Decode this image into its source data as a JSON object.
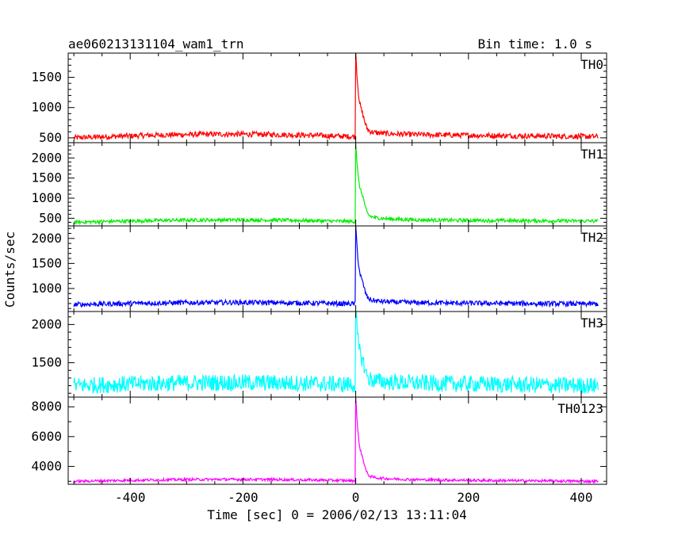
{
  "chart_data": {
    "type": "line",
    "title": "ae060213131104_wam1_trn",
    "subtitle": "Bin time: 1.0 s",
    "xlabel": "Time [sec] 0 = 2006/02/13 13:11:04",
    "ylabel": "Counts/sec",
    "xlim": [
      -510,
      445
    ],
    "xticks": [
      -400,
      -200,
      0,
      200,
      400
    ],
    "grid": false,
    "panels": [
      {
        "name": "TH0",
        "color": "#ff0000",
        "ylim": [
          420,
          1900
        ],
        "yticks": [
          500,
          1000,
          1500
        ],
        "x_range": [
          -500,
          430
        ],
        "baseline_start": 500,
        "baseline_end": 520,
        "baseline_mid": 560,
        "noise": 45,
        "peak": 1900,
        "secondary_bump": 120
      },
      {
        "name": "TH1",
        "color": "#00ee00",
        "ylim": [
          310,
          2380
        ],
        "yticks": [
          500,
          1000,
          1500,
          2000
        ],
        "x_range": [
          -500,
          430
        ],
        "baseline_start": 400,
        "baseline_end": 430,
        "baseline_mid": 460,
        "noise": 45,
        "peak": 2350,
        "secondary_bump": 260
      },
      {
        "name": "TH2",
        "color": "#0000ff",
        "ylim": [
          540,
          2250
        ],
        "yticks": [
          1000,
          1500,
          2000
        ],
        "x_range": [
          -500,
          430
        ],
        "baseline_start": 680,
        "baseline_end": 690,
        "baseline_mid": 720,
        "noise": 50,
        "peak": 2250,
        "secondary_bump": 150
      },
      {
        "name": "TH3",
        "color": "#00ffff",
        "ylim": [
          1050,
          2170
        ],
        "yticks": [
          1500,
          2000
        ],
        "x_range": [
          -500,
          430
        ],
        "baseline_start": 1200,
        "baseline_end": 1200,
        "baseline_mid": 1240,
        "noise": 110,
        "peak": 2150,
        "secondary_bump": 130
      },
      {
        "name": "TH0123",
        "color": "#ff00ff",
        "ylim": [
          2800,
          8650
        ],
        "yticks": [
          4000,
          6000,
          8000
        ],
        "x_range": [
          -500,
          430
        ],
        "baseline_start": 3000,
        "baseline_end": 3000,
        "baseline_mid": 3130,
        "noise": 90,
        "peak": 8600,
        "secondary_bump": 550
      }
    ]
  }
}
